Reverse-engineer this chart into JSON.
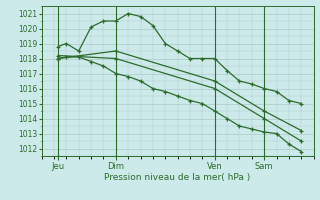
{
  "background_color": "#cceaea",
  "grid_color": "#b0c8c8",
  "line_color": "#2d6b2d",
  "xlabel": "Pression niveau de la mer( hPa )",
  "ylim": [
    1011.5,
    1021.5
  ],
  "yticks": [
    1012,
    1013,
    1014,
    1015,
    1016,
    1017,
    1018,
    1019,
    1020,
    1021
  ],
  "xlim": [
    0,
    132
  ],
  "day_labels": [
    "Jeu",
    "Dim",
    "Ven",
    "Sam"
  ],
  "day_positions": [
    8,
    36,
    84,
    108
  ],
  "vlines": [
    8,
    36,
    84,
    108
  ],
  "line1_x": [
    8,
    12,
    18,
    24,
    30,
    36,
    42,
    48,
    54,
    60,
    66,
    72,
    78,
    84,
    90,
    96,
    102,
    108,
    114,
    120,
    126
  ],
  "line1_y": [
    1018.8,
    1019.0,
    1018.5,
    1020.1,
    1020.5,
    1020.5,
    1021.0,
    1020.8,
    1020.2,
    1019.0,
    1018.5,
    1018.0,
    1018.0,
    1018.0,
    1017.2,
    1016.5,
    1016.3,
    1016.0,
    1015.8,
    1015.2,
    1015.0
  ],
  "line2_x": [
    8,
    36,
    84,
    108,
    126
  ],
  "line2_y": [
    1018.0,
    1018.5,
    1016.5,
    1014.5,
    1013.2
  ],
  "line3_x": [
    8,
    36,
    84,
    108,
    126
  ],
  "line3_y": [
    1018.2,
    1018.0,
    1016.0,
    1014.0,
    1012.5
  ],
  "line4_x": [
    8,
    12,
    18,
    24,
    30,
    36,
    42,
    48,
    54,
    60,
    66,
    72,
    78,
    84,
    90,
    96,
    102,
    108,
    114,
    120,
    126
  ],
  "line4_y": [
    1018.0,
    1018.1,
    1018.1,
    1017.8,
    1017.5,
    1017.0,
    1016.8,
    1016.5,
    1016.0,
    1015.8,
    1015.5,
    1015.2,
    1015.0,
    1014.5,
    1014.0,
    1013.5,
    1013.3,
    1013.1,
    1013.0,
    1012.3,
    1011.8
  ]
}
